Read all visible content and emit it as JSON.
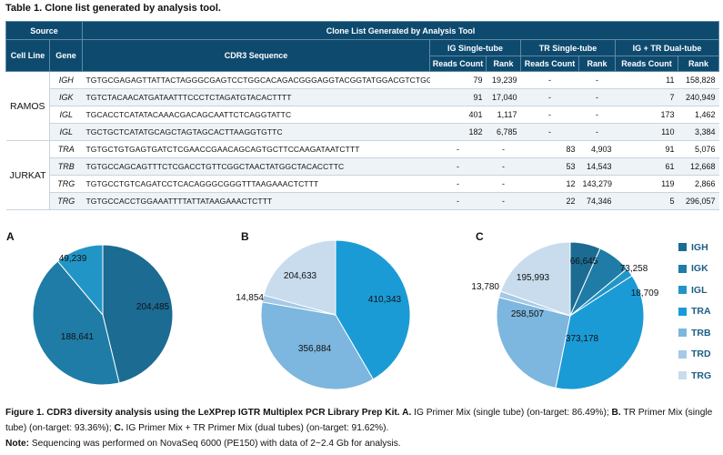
{
  "table": {
    "title": "Table 1. Clone list generated by analysis tool.",
    "header": {
      "source": "Source",
      "clone_list": "Clone List Generated by Analysis Tool",
      "cell_line": "Cell Line",
      "gene": "Gene",
      "cdr3": "CDR3 Sequence",
      "ig_single": "IG Single-tube",
      "tr_single": "TR Single-tube",
      "dual": "IG + TR Dual-tube",
      "reads_count": "Reads Count",
      "rank": "Rank"
    },
    "groups": [
      {
        "cell_line": "RAMOS",
        "rows": [
          {
            "gene": "IGH",
            "seq": "TGTGCGAGAGTTATTACTAGGGCGAGTCCTGGCACAGACGGGAGGTACGGTATGGACGTCTGG",
            "ig_reads": "79",
            "ig_rank": "19,239",
            "tr_reads": "-",
            "tr_rank": "-",
            "dual_reads": "11",
            "dual_rank": "158,828"
          },
          {
            "gene": "IGK",
            "seq": "TGTCTACAACATGATAATTTCCCTCTAGATGTACACTTTT",
            "ig_reads": "91",
            "ig_rank": "17,040",
            "tr_reads": "-",
            "tr_rank": "-",
            "dual_reads": "7",
            "dual_rank": "240,949"
          },
          {
            "gene": "IGL",
            "seq": "TGCACCTCATATACAAACGACAGCAATTCTCAGGTATTC",
            "ig_reads": "401",
            "ig_rank": "1,117",
            "tr_reads": "-",
            "tr_rank": "-",
            "dual_reads": "173",
            "dual_rank": "1,462"
          },
          {
            "gene": "IGL",
            "seq": "TGCTGCTCATATGCAGCTAGTAGCACTTAAGGTGTTC",
            "ig_reads": "182",
            "ig_rank": "6,785",
            "tr_reads": "-",
            "tr_rank": "-",
            "dual_reads": "110",
            "dual_rank": "3,384"
          }
        ]
      },
      {
        "cell_line": "JURKAT",
        "rows": [
          {
            "gene": "TRA",
            "seq": "TGTGCTGTGAGTGATCTCGAACCGAACAGCAGTGCTTCCAAGATAATCTTT",
            "ig_reads": "-",
            "ig_rank": "-",
            "tr_reads": "83",
            "tr_rank": "4,903",
            "dual_reads": "91",
            "dual_rank": "5,076"
          },
          {
            "gene": "TRB",
            "seq": "TGTGCCAGCAGTTTCTCGACCTGTTCGGCTAACTATGGCTACACCTTC",
            "ig_reads": "-",
            "ig_rank": "-",
            "tr_reads": "53",
            "tr_rank": "14,543",
            "dual_reads": "61",
            "dual_rank": "12,668"
          },
          {
            "gene": "TRG",
            "seq": "TGTGCCTGTCAGATCCTCACAGGGCGGGTTTAAGAAACTCTTT",
            "ig_reads": "-",
            "ig_rank": "-",
            "tr_reads": "12",
            "tr_rank": "143,279",
            "dual_reads": "119",
            "dual_rank": "2,866"
          },
          {
            "gene": "TRG",
            "seq": "TGTGCCACCTGGAAATTTTATTATAAGAAACTCTTT",
            "ig_reads": "-",
            "ig_rank": "-",
            "tr_reads": "22",
            "tr_rank": "74,346",
            "dual_reads": "5",
            "dual_rank": "296,057"
          }
        ]
      }
    ]
  },
  "chart_data": [
    {
      "type": "pie",
      "panel": "A",
      "title": "IG Primer Mix (single tube)",
      "labels": [
        "IGH",
        "IGK",
        "IGL"
      ],
      "values": [
        204485,
        188641,
        49239
      ],
      "value_labels": [
        "204,485",
        "188,641",
        "49,239"
      ]
    },
    {
      "type": "pie",
      "panel": "B",
      "title": "TR Primer Mix (single tube)",
      "labels": [
        "TRA",
        "TRB",
        "TRD",
        "TRG"
      ],
      "values": [
        410343,
        356884,
        14854,
        204633
      ],
      "value_labels": [
        "410,343",
        "356,884",
        "14,854",
        "204,633"
      ]
    },
    {
      "type": "pie",
      "panel": "C",
      "title": "IG Primer Mix + TR Primer Mix (dual tubes)",
      "labels": [
        "IGH",
        "IGK",
        "IGL",
        "TRA",
        "TRB",
        "TRD",
        "TRG"
      ],
      "values": [
        66645,
        73258,
        18709,
        373178,
        258507,
        13780,
        195993
      ],
      "value_labels": [
        "66,645",
        "73,258",
        "18,709",
        "373,178",
        "258,507",
        "13,780",
        "195,993"
      ]
    }
  ],
  "legend": [
    {
      "label": "IGH",
      "color": "#1b6b93"
    },
    {
      "label": "IGK",
      "color": "#1f7ca6"
    },
    {
      "label": "IGL",
      "color": "#2196c6"
    },
    {
      "label": "TRA",
      "color": "#1a9bd6"
    },
    {
      "label": "TRB",
      "color": "#7db6de"
    },
    {
      "label": "TRD",
      "color": "#a5c9e6"
    },
    {
      "label": "TRG",
      "color": "#c8dced"
    }
  ],
  "caption": {
    "fig_label": "Figure 1. CDR3 diversity analysis using the LeXPrep IGTR Multiplex PCR Library Prep Kit. A.",
    "a_text": " IG Primer Mix (single tube) (on-target: 86.49%); ",
    "b_label": "B.",
    "b_text": " TR Primer Mix (single tube) (on-target: 93.36%); ",
    "c_label": "C.",
    "c_text": " IG Primer Mix + TR Primer Mix (dual tubes) (on-target: 91.62%).",
    "note_label": "Note:",
    "note_text": " Sequencing was performed on NovaSeq 6000 (PE150) with data of 2~2.4 Gb for analysis."
  }
}
